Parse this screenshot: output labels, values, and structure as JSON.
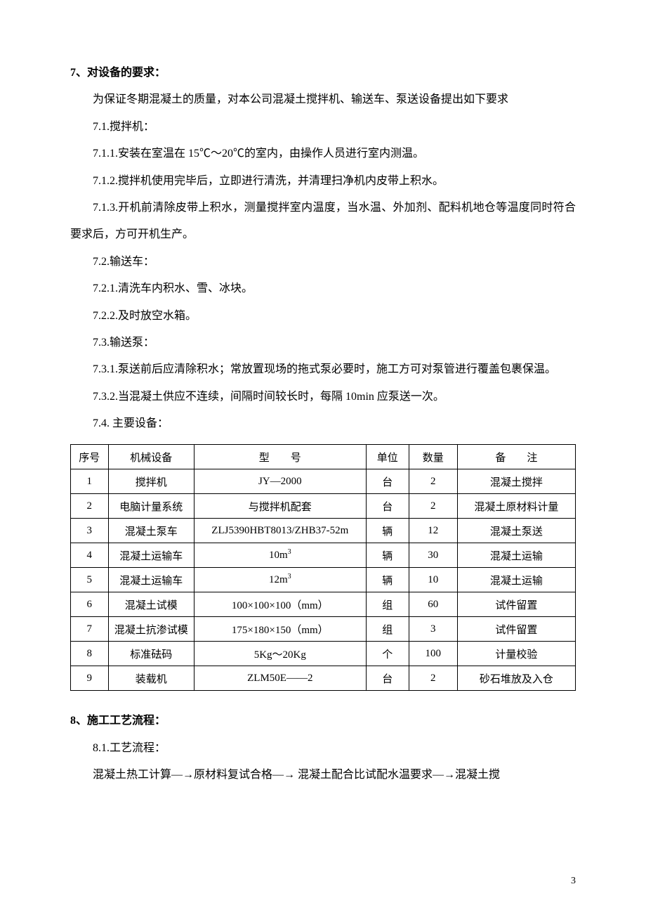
{
  "section7": {
    "heading": "7、对设备的要求：",
    "p_intro": "为保证冬期混凝土的质量，对本公司混凝土搅拌机、输送车、泵送设备提出如下要求",
    "p71": "7.1.搅拌机：",
    "p711": "7.1.1.安装在室温在 15℃～20℃的室内，由操作人员进行室内测温。",
    "p712": "7.1.2.搅拌机使用完毕后，立即进行清洗，并清理扫净机内皮带上积水。",
    "p713": "7.1.3.开机前清除皮带上积水，测量搅拌室内温度，当水温、外加剂、配料机地仓等温度同时符合要求后，方可开机生产。",
    "p72": "7.2.输送车：",
    "p721": "7.2.1.清洗车内积水、雪、冰块。",
    "p722": "7.2.2.及时放空水箱。",
    "p73": "7.3.输送泵：",
    "p731": "7.3.1.泵送前后应清除积水；常放置现场的拖式泵必要时，施工方可对泵管进行覆盖包裹保温。",
    "p732": "7.3.2.当混凝土供应不连续，间隔时间较长时，每隔 10min 应泵送一次。",
    "p74": "7.4. 主要设备："
  },
  "table": {
    "headers": {
      "seq": "序号",
      "name": "机械设备",
      "model": "型　　号",
      "unit": "单位",
      "qty": "数量",
      "note": "备　　注"
    },
    "rows": [
      {
        "seq": "1",
        "name": "搅拌机",
        "model": "JY—2000",
        "unit": "台",
        "qty": "2",
        "note": "混凝土搅拌"
      },
      {
        "seq": "2",
        "name": "电脑计量系统",
        "model": "与搅拌机配套",
        "unit": "台",
        "qty": "2",
        "note": "混凝土原材料计量"
      },
      {
        "seq": "3",
        "name": "混凝土泵车",
        "model": "ZLJ5390HBT8013/ZHB37-52m",
        "unit": "辆",
        "qty": "12",
        "note": "混凝土泵送"
      },
      {
        "seq": "4",
        "name": "混凝土运输车",
        "model_html": "10m<sup>3</sup>",
        "model": "10m3",
        "unit": "辆",
        "qty": "30",
        "note": "混凝土运输"
      },
      {
        "seq": "5",
        "name": "混凝土运输车",
        "model_html": "12m<sup>3</sup>",
        "model": "12m3",
        "unit": "辆",
        "qty": "10",
        "note": "混凝土运输"
      },
      {
        "seq": "6",
        "name": "混凝土试模",
        "model": "100×100×100（mm）",
        "unit": "组",
        "qty": "60",
        "note": "试件留置"
      },
      {
        "seq": "7",
        "name": "混凝土抗渗试模",
        "model": "175×180×150（mm）",
        "unit": "组",
        "qty": "3",
        "note": "试件留置"
      },
      {
        "seq": "8",
        "name": "标准砝码",
        "model": "5Kg～20Kg",
        "unit": "个",
        "qty": "100",
        "note": "计量校验"
      },
      {
        "seq": "9",
        "name": "装载机",
        "model": "ZLM50E——2",
        "unit": "台",
        "qty": "2",
        "note": "砂石堆放及入仓"
      }
    ]
  },
  "section8": {
    "heading": "8、施工工艺流程：",
    "p81": "8.1.工艺流程：",
    "flow": "混凝土热工计算—→原材料复试合格—→ 混凝土配合比试配水温要求—→混凝土搅"
  },
  "page_number": "3"
}
